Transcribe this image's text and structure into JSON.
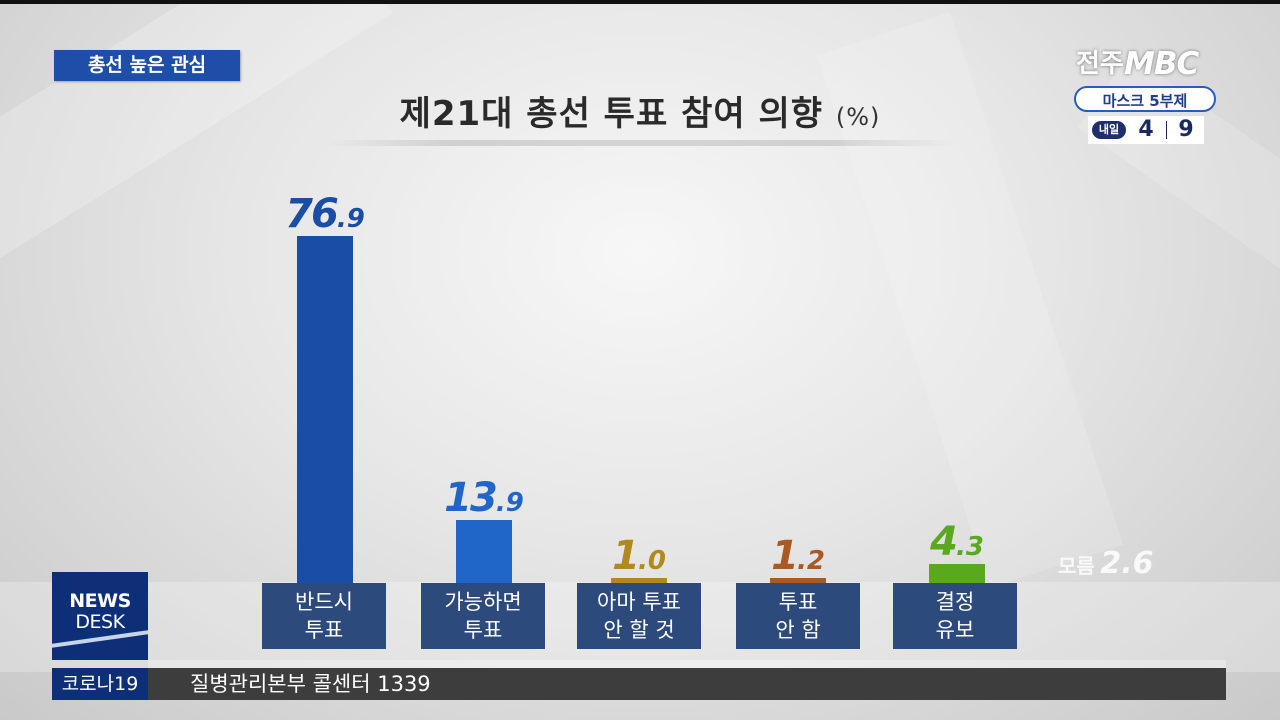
{
  "topic_tag": "총선 높은 관심",
  "chart_data": {
    "type": "bar",
    "title": "제21대 총선 투표 참여 의향",
    "unit": "(%)",
    "categories": [
      "반드시\n투표",
      "가능하면\n투표",
      "아마 투표\n안 할 것",
      "투표\n안 함",
      "결정\n유보"
    ],
    "values": [
      76.9,
      13.9,
      1.0,
      1.2,
      4.3
    ],
    "value_labels": [
      {
        "int": "76",
        "dec": ".9"
      },
      {
        "int": "13",
        "dec": ".9"
      },
      {
        "int": "1",
        "dec": ".0"
      },
      {
        "int": "1",
        "dec": ".2"
      },
      {
        "int": "4",
        "dec": ".3"
      }
    ],
    "colors": [
      "#1a4ea6",
      "#2066c8",
      "#b08a1e",
      "#a85a22",
      "#5aa81e"
    ],
    "extra": {
      "label": "모름",
      "value": "2.6"
    },
    "ylim": [
      0,
      80
    ],
    "grid": false
  },
  "logo": {
    "ko": "전주",
    "brand": "MBC"
  },
  "mask": {
    "title": "마스크 5부제",
    "tomorrow": "내일",
    "day1": "4",
    "day2": "9"
  },
  "newsdesk": {
    "line1": "NEWS",
    "line2": "DESK"
  },
  "ticker": {
    "tag": "코로나19",
    "text": "질병관리본부 콜센터 1339"
  }
}
